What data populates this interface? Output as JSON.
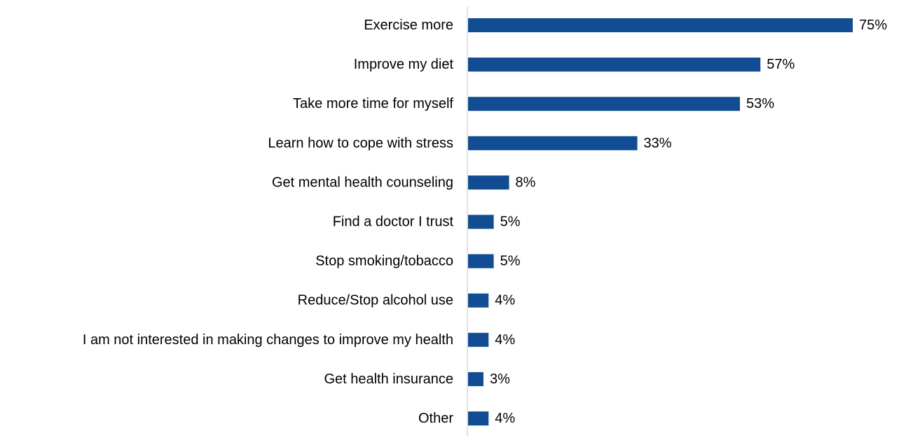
{
  "chart_data": {
    "type": "bar",
    "orientation": "horizontal",
    "categories": [
      "Exercise more",
      "Improve my diet",
      "Take more time for myself",
      "Learn how to cope with stress",
      "Get mental health counseling",
      "Find a doctor I trust",
      "Stop smoking/tobacco",
      "Reduce/Stop alcohol use",
      "I am not interested in making changes to improve my health",
      "Get health insurance",
      "Other"
    ],
    "values": [
      75,
      57,
      53,
      33,
      8,
      5,
      5,
      4,
      4,
      3,
      4
    ],
    "value_labels": [
      "75%",
      "57%",
      "53%",
      "33%",
      "8%",
      "5%",
      "5%",
      "4%",
      "4%",
      "3%",
      "4%"
    ],
    "unit": "%",
    "xlim": [
      0,
      75
    ],
    "grid": false,
    "legend": "none",
    "colors": {
      "bar": "#124C92",
      "axis": "#D9D9D9",
      "text": "#000000"
    }
  }
}
